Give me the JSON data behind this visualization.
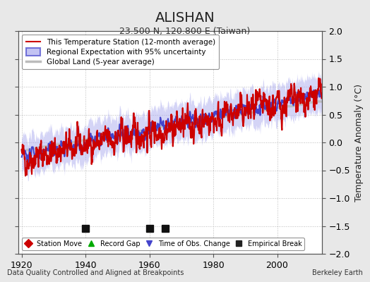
{
  "title": "ALISHAN",
  "subtitle": "23.500 N, 120.800 E (Taiwan)",
  "ylabel": "Temperature Anomaly (°C)",
  "xlabel_left": "Data Quality Controlled and Aligned at Breakpoints",
  "xlabel_right": "Berkeley Earth",
  "ylim": [
    -2,
    2
  ],
  "xlim": [
    1919,
    2014
  ],
  "yticks": [
    -2,
    -1.5,
    -1,
    -0.5,
    0,
    0.5,
    1,
    1.5,
    2
  ],
  "xticks": [
    1920,
    1940,
    1960,
    1980,
    2000
  ],
  "empirical_breaks": [
    1940,
    1960,
    1965
  ],
  "legend_items": [
    {
      "label": "This Temperature Station (12-month average)",
      "color": "#cc0000",
      "lw": 1.5
    },
    {
      "label": "Regional Expectation with 95% uncertainty",
      "color": "#4444cc",
      "lw": 1.5,
      "band_color": "#aaaaee"
    },
    {
      "label": "Global Land (5-year average)",
      "color": "#bbbbbb",
      "lw": 2.5
    }
  ],
  "marker_legend": [
    {
      "label": "Station Move",
      "marker": "D",
      "color": "#cc0000"
    },
    {
      "label": "Record Gap",
      "marker": "^",
      "color": "#00aa00"
    },
    {
      "label": "Time of Obs. Change",
      "marker": "v",
      "color": "#4444cc"
    },
    {
      "label": "Empirical Break",
      "marker": "s",
      "color": "#222222"
    }
  ],
  "bg_color": "#e8e8e8",
  "plot_bg_color": "#ffffff",
  "seed": 42
}
